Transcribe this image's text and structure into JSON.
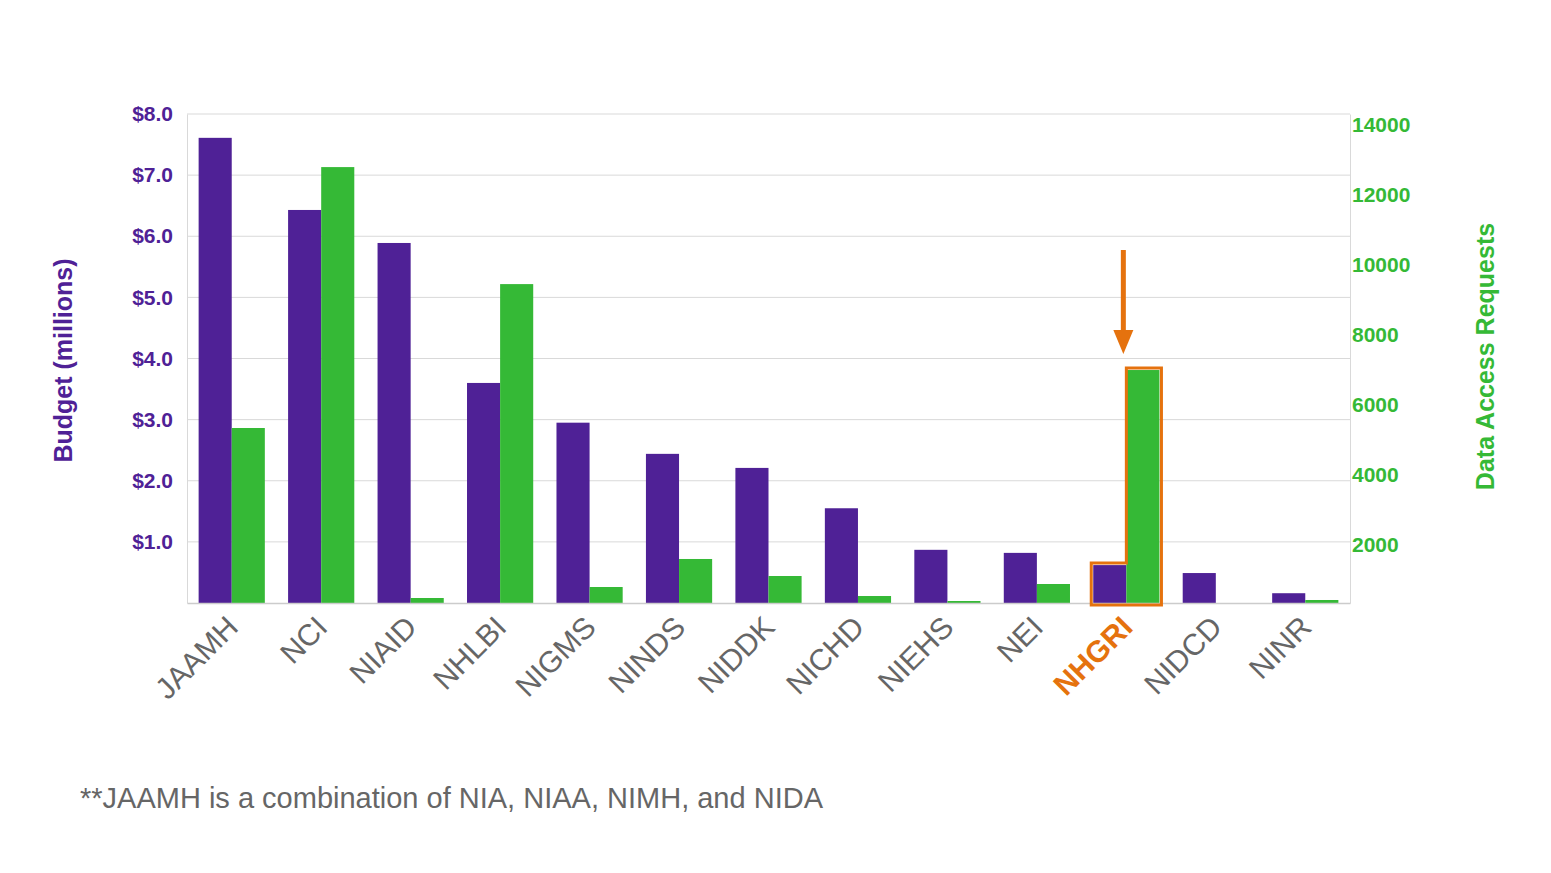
{
  "chart_data": {
    "type": "bar",
    "categories": [
      "JAAMH",
      "NCI",
      "NIAID",
      "NHLBI",
      "NIGMS",
      "NINDS",
      "NIDDK",
      "NICHD",
      "NIEHS",
      "NEI",
      "NHGRI",
      "NIDCD",
      "NINR"
    ],
    "series": [
      {
        "name": "Budget (millions)",
        "color": "#4f2196",
        "axis": "y",
        "values": [
          7.61,
          6.43,
          5.89,
          3.6,
          2.95,
          2.44,
          2.21,
          1.55,
          0.87,
          0.82,
          0.62,
          0.49,
          0.16
        ]
      },
      {
        "name": "Data Access Requests",
        "color": "#35b936",
        "axis": "y2",
        "values": [
          5010,
          12480,
          143,
          9130,
          458,
          1260,
          773,
          200,
          57,
          544,
          6670,
          null,
          86
        ]
      }
    ],
    "y_label": "Budget (millions)",
    "y2_label": "Data Access Requests",
    "ylim": [
      0,
      8
    ],
    "yticks": [
      {
        "value": 1,
        "label": "$1.0"
      },
      {
        "value": 2,
        "label": "$2.0"
      },
      {
        "value": 3,
        "label": "$3.0"
      },
      {
        "value": 4,
        "label": "$4.0"
      },
      {
        "value": 5,
        "label": "$5.0"
      },
      {
        "value": 6,
        "label": "$6.0"
      },
      {
        "value": 7,
        "label": "$7.0"
      },
      {
        "value": 8,
        "label": "$8.0"
      }
    ],
    "y2lim": [
      0,
      14000
    ],
    "y2ticks": [
      2000,
      4000,
      6000,
      8000,
      10000,
      12000,
      14000
    ],
    "grid": true,
    "footnote": "**JAAMH is a combination of NIA, NIAA, NIMH, and NIDA"
  }
}
